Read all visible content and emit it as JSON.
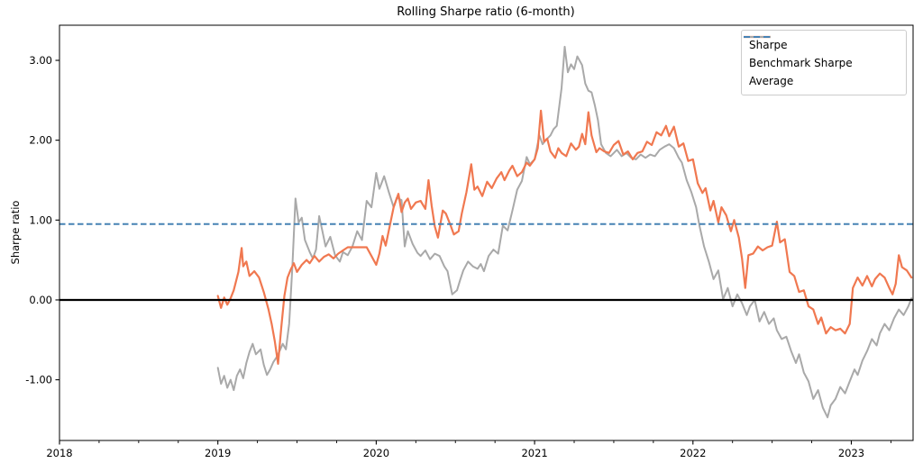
{
  "title": "Rolling Sharpe ratio (6-month)",
  "ylabel": "Sharpe ratio",
  "legend": {
    "items": [
      {
        "label": "Sharpe",
        "color": "#F07850",
        "style": "solid"
      },
      {
        "label": "Benchmark Sharpe",
        "color": "#A9A9A9",
        "style": "solid"
      },
      {
        "label": "Average",
        "color": "#4682B4",
        "style": "dashed"
      }
    ]
  },
  "axes": {
    "x_tick_labels": [
      "2018",
      "2019",
      "2020",
      "2021",
      "2022",
      "2023"
    ],
    "y_tick_labels": [
      "3.00",
      "2.00",
      "1.00",
      "0.00",
      "-1.00"
    ]
  },
  "chart_data": {
    "type": "line",
    "title": "Rolling Sharpe ratio (6-month)",
    "xlabel": "",
    "ylabel": "Sharpe ratio",
    "xlim": [
      2018,
      2023.39
    ],
    "ylim": [
      -1.76,
      3.44
    ],
    "grid": false,
    "legend_position": "upper right",
    "zero_line": {
      "value": 0.0,
      "color": "#000000"
    },
    "average_line": {
      "value": 0.95,
      "color": "#4682B4",
      "style": "dashed"
    },
    "series": [
      {
        "name": "Sharpe",
        "color": "#F07850",
        "width": 2.2,
        "x": [
          2019.0,
          2019.02,
          2019.04,
          2019.06,
          2019.08,
          2019.1,
          2019.13,
          2019.15,
          2019.16,
          2019.18,
          2019.2,
          2019.23,
          2019.26,
          2019.29,
          2019.32,
          2019.34,
          2019.36,
          2019.38,
          2019.4,
          2019.42,
          2019.44,
          2019.46,
          2019.48,
          2019.5,
          2019.53,
          2019.56,
          2019.58,
          2019.61,
          2019.64,
          2019.67,
          2019.7,
          2019.73,
          2019.76,
          2019.79,
          2019.82,
          2019.86,
          2019.9,
          2019.94,
          2019.97,
          2020.0,
          2020.02,
          2020.04,
          2020.06,
          2020.09,
          2020.11,
          2020.14,
          2020.16,
          2020.18,
          2020.2,
          2020.22,
          2020.25,
          2020.28,
          2020.31,
          2020.33,
          2020.35,
          2020.37,
          2020.39,
          2020.42,
          2020.44,
          2020.47,
          2020.49,
          2020.52,
          2020.54,
          2020.57,
          2020.6,
          2020.62,
          2020.64,
          2020.67,
          2020.7,
          2020.73,
          2020.76,
          2020.79,
          2020.81,
          2020.84,
          2020.86,
          2020.89,
          2020.92,
          2020.95,
          2020.97,
          2021.0,
          2021.02,
          2021.04,
          2021.06,
          2021.08,
          2021.1,
          2021.13,
          2021.15,
          2021.17,
          2021.2,
          2021.23,
          2021.26,
          2021.28,
          2021.3,
          2021.32,
          2021.34,
          2021.36,
          2021.39,
          2021.41,
          2021.44,
          2021.47,
          2021.5,
          2021.53,
          2021.56,
          2021.59,
          2021.62,
          2021.65,
          2021.68,
          2021.71,
          2021.74,
          2021.77,
          2021.8,
          2021.83,
          2021.85,
          2021.88,
          2021.91,
          2021.94,
          2021.97,
          2022.0,
          2022.03,
          2022.06,
          2022.08,
          2022.11,
          2022.13,
          2022.16,
          2022.18,
          2022.21,
          2022.24,
          2022.26,
          2022.29,
          2022.31,
          2022.33,
          2022.35,
          2022.38,
          2022.41,
          2022.44,
          2022.47,
          2022.5,
          2022.53,
          2022.55,
          2022.58,
          2022.61,
          2022.64,
          2022.67,
          2022.7,
          2022.73,
          2022.76,
          2022.79,
          2022.81,
          2022.84,
          2022.87,
          2022.9,
          2022.93,
          2022.96,
          2022.99,
          2023.01,
          2023.04,
          2023.07,
          2023.1,
          2023.13,
          2023.15,
          2023.18,
          2023.21,
          2023.24,
          2023.26,
          2023.28,
          2023.3,
          2023.32,
          2023.35,
          2023.38
        ],
        "y": [
          0.05,
          -0.1,
          0.03,
          -0.06,
          0.02,
          0.12,
          0.35,
          0.65,
          0.42,
          0.48,
          0.3,
          0.36,
          0.28,
          0.1,
          -0.12,
          -0.3,
          -0.52,
          -0.8,
          -0.35,
          0.05,
          0.28,
          0.38,
          0.46,
          0.35,
          0.44,
          0.5,
          0.46,
          0.55,
          0.48,
          0.54,
          0.57,
          0.52,
          0.58,
          0.62,
          0.66,
          0.66,
          0.66,
          0.66,
          0.55,
          0.44,
          0.58,
          0.8,
          0.68,
          0.97,
          1.16,
          1.33,
          1.1,
          1.22,
          1.27,
          1.14,
          1.22,
          1.24,
          1.14,
          1.5,
          1.18,
          0.92,
          0.78,
          1.12,
          1.08,
          0.93,
          0.82,
          0.86,
          1.08,
          1.35,
          1.7,
          1.38,
          1.42,
          1.3,
          1.48,
          1.4,
          1.52,
          1.6,
          1.5,
          1.62,
          1.68,
          1.55,
          1.6,
          1.72,
          1.68,
          1.76,
          1.9,
          2.37,
          1.98,
          2.02,
          1.86,
          1.78,
          1.9,
          1.84,
          1.8,
          1.96,
          1.88,
          1.92,
          2.08,
          1.95,
          2.35,
          2.06,
          1.85,
          1.9,
          1.86,
          1.84,
          1.94,
          1.99,
          1.82,
          1.86,
          1.76,
          1.84,
          1.86,
          1.98,
          1.94,
          2.1,
          2.06,
          2.18,
          2.05,
          2.17,
          1.92,
          1.96,
          1.74,
          1.76,
          1.46,
          1.34,
          1.4,
          1.12,
          1.24,
          0.97,
          1.16,
          1.06,
          0.86,
          1.0,
          0.78,
          0.52,
          0.15,
          0.56,
          0.58,
          0.67,
          0.62,
          0.66,
          0.68,
          0.98,
          0.72,
          0.76,
          0.35,
          0.3,
          0.1,
          0.12,
          -0.08,
          -0.12,
          -0.3,
          -0.22,
          -0.42,
          -0.34,
          -0.38,
          -0.36,
          -0.42,
          -0.3,
          0.15,
          0.28,
          0.18,
          0.3,
          0.17,
          0.26,
          0.33,
          0.28,
          0.15,
          0.07,
          0.2,
          0.56,
          0.41,
          0.37,
          0.28
        ]
      },
      {
        "name": "Benchmark Sharpe",
        "color": "#A9A9A9",
        "width": 2.0,
        "x": [
          2019.0,
          2019.02,
          2019.04,
          2019.06,
          2019.08,
          2019.1,
          2019.12,
          2019.14,
          2019.16,
          2019.18,
          2019.2,
          2019.22,
          2019.24,
          2019.27,
          2019.29,
          2019.31,
          2019.33,
          2019.35,
          2019.37,
          2019.39,
          2019.41,
          2019.43,
          2019.45,
          2019.47,
          2019.49,
          2019.51,
          2019.53,
          2019.55,
          2019.58,
          2019.6,
          2019.62,
          2019.64,
          2019.66,
          2019.68,
          2019.71,
          2019.74,
          2019.77,
          2019.79,
          2019.82,
          2019.85,
          2019.88,
          2019.91,
          2019.94,
          2019.97,
          2020.0,
          2020.02,
          2020.05,
          2020.08,
          2020.11,
          2020.13,
          2020.16,
          2020.18,
          2020.2,
          2020.23,
          2020.26,
          2020.28,
          2020.31,
          2020.34,
          2020.37,
          2020.4,
          2020.43,
          2020.45,
          2020.48,
          2020.51,
          2020.53,
          2020.55,
          2020.58,
          2020.61,
          2020.64,
          2020.66,
          2020.68,
          2020.71,
          2020.74,
          2020.77,
          2020.8,
          2020.83,
          2020.86,
          2020.89,
          2020.92,
          2020.95,
          2020.97,
          2021.0,
          2021.03,
          2021.05,
          2021.07,
          2021.1,
          2021.12,
          2021.14,
          2021.17,
          2021.19,
          2021.21,
          2021.23,
          2021.25,
          2021.27,
          2021.3,
          2021.32,
          2021.34,
          2021.36,
          2021.38,
          2021.4,
          2021.42,
          2021.45,
          2021.48,
          2021.52,
          2021.55,
          2021.58,
          2021.61,
          2021.64,
          2021.67,
          2021.7,
          2021.73,
          2021.76,
          2021.79,
          2021.82,
          2021.85,
          2021.88,
          2021.91,
          2021.93,
          2021.96,
          2021.99,
          2022.02,
          2022.04,
          2022.07,
          2022.1,
          2022.13,
          2022.16,
          2022.19,
          2022.22,
          2022.25,
          2022.28,
          2022.31,
          2022.34,
          2022.36,
          2022.39,
          2022.42,
          2022.45,
          2022.48,
          2022.51,
          2022.53,
          2022.56,
          2022.59,
          2022.62,
          2022.65,
          2022.67,
          2022.7,
          2022.73,
          2022.76,
          2022.79,
          2022.82,
          2022.85,
          2022.87,
          2022.9,
          2022.93,
          2022.96,
          2022.99,
          2023.02,
          2023.04,
          2023.07,
          2023.1,
          2023.13,
          2023.16,
          2023.18,
          2023.21,
          2023.24,
          2023.27,
          2023.3,
          2023.33,
          2023.36,
          2023.38
        ],
        "y": [
          -0.85,
          -1.05,
          -0.95,
          -1.1,
          -1.0,
          -1.13,
          -0.95,
          -0.87,
          -0.98,
          -0.79,
          -0.65,
          -0.55,
          -0.68,
          -0.62,
          -0.81,
          -0.94,
          -0.87,
          -0.78,
          -0.72,
          -0.64,
          -0.55,
          -0.62,
          -0.3,
          0.4,
          1.27,
          0.97,
          1.03,
          0.75,
          0.6,
          0.52,
          0.63,
          1.05,
          0.86,
          0.67,
          0.79,
          0.56,
          0.48,
          0.6,
          0.56,
          0.67,
          0.86,
          0.75,
          1.24,
          1.16,
          1.59,
          1.39,
          1.55,
          1.35,
          1.16,
          1.28,
          1.25,
          0.67,
          0.86,
          0.7,
          0.59,
          0.55,
          0.62,
          0.51,
          0.58,
          0.55,
          0.42,
          0.36,
          0.07,
          0.12,
          0.25,
          0.37,
          0.48,
          0.42,
          0.39,
          0.45,
          0.36,
          0.55,
          0.63,
          0.58,
          0.93,
          0.87,
          1.12,
          1.38,
          1.49,
          1.79,
          1.7,
          1.76,
          2.06,
          1.95,
          2.0,
          2.06,
          2.14,
          2.18,
          2.65,
          3.17,
          2.85,
          2.95,
          2.89,
          3.05,
          2.94,
          2.71,
          2.62,
          2.6,
          2.44,
          2.25,
          1.95,
          1.84,
          1.8,
          1.88,
          1.8,
          1.84,
          1.78,
          1.76,
          1.82,
          1.78,
          1.82,
          1.8,
          1.88,
          1.92,
          1.95,
          1.9,
          1.78,
          1.72,
          1.5,
          1.35,
          1.16,
          0.94,
          0.67,
          0.48,
          0.26,
          0.37,
          0.01,
          0.15,
          -0.08,
          0.07,
          -0.04,
          -0.19,
          -0.08,
          0.0,
          -0.27,
          -0.15,
          -0.3,
          -0.23,
          -0.38,
          -0.49,
          -0.46,
          -0.64,
          -0.79,
          -0.68,
          -0.91,
          -1.02,
          -1.24,
          -1.13,
          -1.35,
          -1.47,
          -1.32,
          -1.24,
          -1.09,
          -1.17,
          -1.02,
          -0.87,
          -0.94,
          -0.76,
          -0.64,
          -0.49,
          -0.57,
          -0.42,
          -0.3,
          -0.38,
          -0.23,
          -0.12,
          -0.19,
          -0.08,
          0.02
        ]
      }
    ]
  }
}
